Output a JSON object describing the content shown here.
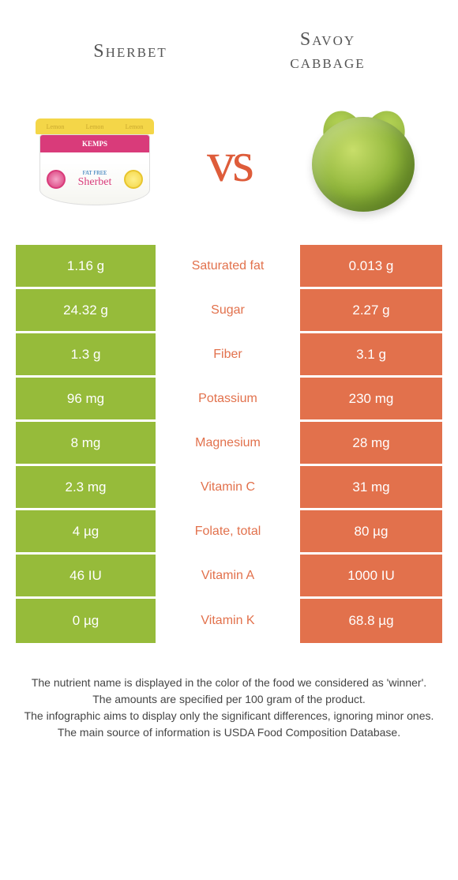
{
  "header": {
    "left_title": "Sherbet",
    "right_title_line1": "Savoy",
    "right_title_line2": "cabbage"
  },
  "hero": {
    "vs_label": "vs",
    "sherbet_lid_text": "Lemon",
    "sherbet_brand": "KEMPS",
    "sherbet_script": "Sherbet",
    "sherbet_tag": "FAT FREE"
  },
  "colors": {
    "left": "#96bb3a",
    "right": "#e2714c",
    "mid_green": "#96bb3a",
    "mid_orange": "#e2714c"
  },
  "rows": [
    {
      "left": "1.16 g",
      "label": "Saturated fat",
      "right": "0.013 g",
      "winner": "right"
    },
    {
      "left": "24.32 g",
      "label": "Sugar",
      "right": "2.27 g",
      "winner": "right"
    },
    {
      "left": "1.3 g",
      "label": "Fiber",
      "right": "3.1 g",
      "winner": "right"
    },
    {
      "left": "96 mg",
      "label": "Potassium",
      "right": "230 mg",
      "winner": "right"
    },
    {
      "left": "8 mg",
      "label": "Magnesium",
      "right": "28 mg",
      "winner": "right"
    },
    {
      "left": "2.3 mg",
      "label": "Vitamin C",
      "right": "31 mg",
      "winner": "right"
    },
    {
      "left": "4 µg",
      "label": "Folate, total",
      "right": "80 µg",
      "winner": "right"
    },
    {
      "left": "46 IU",
      "label": "Vitamin A",
      "right": "1000 IU",
      "winner": "right"
    },
    {
      "left": "0 µg",
      "label": "Vitamin K",
      "right": "68.8 µg",
      "winner": "right"
    }
  ],
  "footer": {
    "line1": "The nutrient name is displayed in the color of the food we considered as 'winner'.",
    "line2": "The amounts are specified per 100 gram of the product.",
    "line3": "The infographic aims to display only the significant differences, ignoring minor ones.",
    "line4": "The main source of information is USDA Food Composition Database."
  }
}
